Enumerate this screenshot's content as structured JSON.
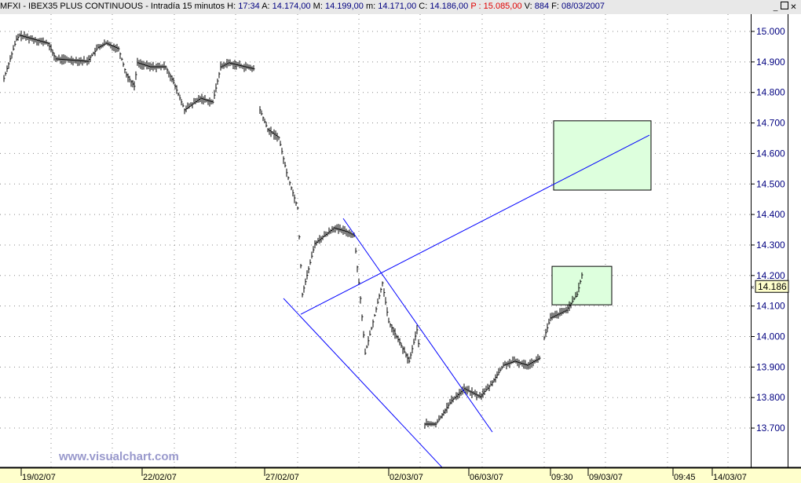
{
  "header": {
    "symbol": "MFXI - IBEX35 PLUS CONTINUOUS - Intradía 15 minutos",
    "fields": [
      {
        "label": "H:",
        "value": "17:34"
      },
      {
        "label": "A:",
        "value": "14.174,00"
      },
      {
        "label": "M:",
        "value": "14.199,00"
      },
      {
        "label": "m:",
        "value": "14.171,00"
      },
      {
        "label": "C:",
        "value": "14.186,00"
      },
      {
        "label": "P :",
        "value": "15.085,00",
        "color": "#e00000"
      },
      {
        "label": "V:",
        "value": "884"
      },
      {
        "label": "F:",
        "value": "08/03/2007"
      }
    ]
  },
  "window_buttons": [
    "minimize-icon",
    "maximize-icon",
    "close-icon"
  ],
  "watermark": "www.visualchart.com",
  "chart_data": {
    "type": "ohlc-bar",
    "ylim": [
      13580,
      15100
    ],
    "yticks": [
      "15.000",
      "14.900",
      "14.800",
      "14.700",
      "14.600",
      "14.500",
      "14.400",
      "14.300",
      "14.200",
      "14.100",
      "14.000",
      "13.900",
      "13.800",
      "13.700"
    ],
    "ytick_values": [
      15000,
      14900,
      14800,
      14700,
      14600,
      14500,
      14400,
      14300,
      14200,
      14100,
      14000,
      13900,
      13800,
      13700
    ],
    "xticks": [
      {
        "label": "19/02/07",
        "bar": 7
      },
      {
        "label": "22/02/07",
        "bar": 84
      },
      {
        "label": "27/02/07",
        "bar": 162
      },
      {
        "label": "02/03/07",
        "bar": 241
      },
      {
        "label": "06/03/07",
        "bar": 292
      },
      {
        "label": "09:30",
        "bar": 344
      },
      {
        "label": "09/03/07",
        "bar": 368
      },
      {
        "label": "09:45",
        "bar": 422
      },
      {
        "label": "14/03/07",
        "bar": 447
      }
    ],
    "grid": "dotted",
    "last_price_label": "14.186",
    "price_path_segments": [
      [
        [
          0,
          14846
        ],
        [
          8,
          14974
        ],
        [
          10,
          14987
        ],
        [
          28,
          14961
        ],
        [
          33,
          14910
        ],
        [
          53,
          14902
        ],
        [
          60,
          14948
        ],
        [
          65,
          14961
        ],
        [
          73,
          14943
        ],
        [
          78,
          14858
        ],
        [
          83,
          14820
        ],
        [
          85,
          14897
        ],
        [
          93,
          14884
        ],
        [
          103,
          14884
        ],
        [
          108,
          14833
        ],
        [
          115,
          14743
        ],
        [
          125,
          14781
        ],
        [
          133,
          14768
        ],
        [
          138,
          14884
        ],
        [
          143,
          14897
        ],
        [
          160,
          14876
        ]
      ],
      [
        [
          163,
          14743
        ],
        [
          168,
          14678
        ],
        [
          175,
          14652
        ],
        [
          180,
          14537
        ],
        [
          187,
          14421
        ],
        [
          190,
          14138
        ],
        [
          198,
          14305
        ],
        [
          210,
          14356
        ],
        [
          218,
          14344
        ],
        [
          223,
          14331
        ],
        [
          227,
          14125
        ],
        [
          230,
          13945
        ],
        [
          235,
          14048
        ],
        [
          241,
          14176
        ],
        [
          245,
          14048
        ],
        [
          253,
          13970
        ],
        [
          258,
          13919
        ],
        [
          263,
          14022
        ],
        [
          265,
          13932
        ]
      ],
      [
        [
          268,
          13713
        ],
        [
          275,
          13713
        ],
        [
          285,
          13790
        ],
        [
          293,
          13829
        ],
        [
          303,
          13803
        ],
        [
          310,
          13842
        ],
        [
          318,
          13906
        ],
        [
          325,
          13919
        ],
        [
          333,
          13906
        ],
        [
          342,
          13932
        ]
      ],
      [
        [
          344,
          13996
        ],
        [
          348,
          14061
        ],
        [
          358,
          14086
        ],
        [
          365,
          14138
        ],
        [
          368,
          14202
        ],
        [
          369,
          14186
        ]
      ]
    ],
    "trendlines": [
      {
        "from": [
          189,
          14073
        ],
        "to": [
          411,
          14660
        ],
        "color": "#0000ff"
      },
      {
        "from": [
          216,
          14387
        ],
        "to": [
          311,
          13687
        ],
        "color": "#0000ff"
      },
      {
        "from": [
          178,
          14125
        ],
        "to": [
          279,
          13571
        ],
        "color": "#0000ff"
      }
    ],
    "rectangles": [
      {
        "bar_from": 350,
        "bar_to": 412,
        "price_top": 14707,
        "price_bottom": 14480,
        "color": "#ddffdd"
      },
      {
        "bar_from": 349,
        "bar_to": 387,
        "price_top": 14230,
        "price_bottom": 14104,
        "color": "#ddffdd"
      }
    ]
  }
}
